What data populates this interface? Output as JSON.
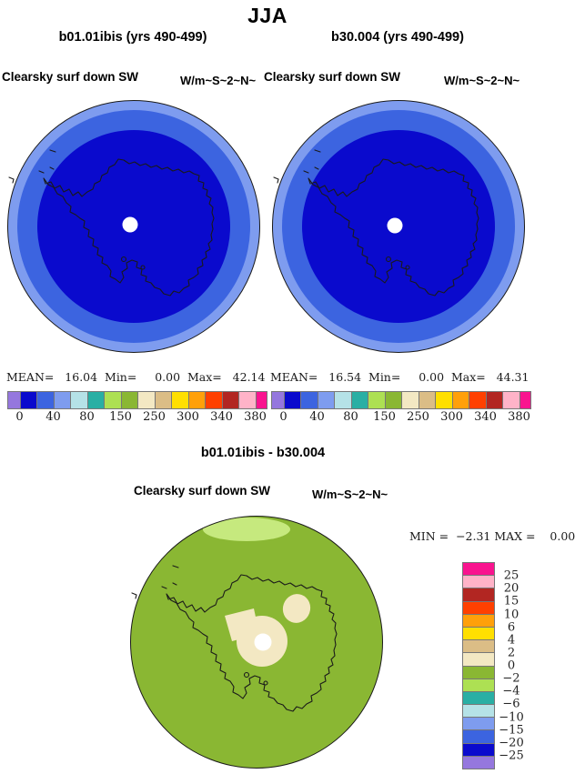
{
  "figure_title": "JJA",
  "panels": {
    "left": {
      "title": "b01.01ibis (yrs 490-499)",
      "field": "Clearsky surf down SW",
      "units": "W/m~S~2~N~",
      "stats_line": "MEAN=   16.04  Min=     0.00  Max=   42.14"
    },
    "right": {
      "title": "b30.004 (yrs 490-499)",
      "field": "Clearsky surf down SW",
      "units": "W/m~S~2~N~",
      "stats_line": "MEAN=   16.54  Min=     0.00  Max=   44.31"
    },
    "diff": {
      "title": "b01.01ibis - b30.004",
      "field": "Clearsky surf down SW",
      "units": "W/m~S~2~N~",
      "stats_line": "MIN =  −2.31 MAX =    0.00"
    }
  },
  "colorbar": {
    "palette": [
      "#9577de",
      "#0a0acd",
      "#3c64e0",
      "#7e9cef",
      "#b5e2e7",
      "#29afa4",
      "#ade053",
      "#8ab733",
      "#f3e8c3",
      "#dbbd86",
      "#ffdf00",
      "#ffa00a",
      "#ff4000",
      "#b22622",
      "#ffb3c8",
      "#f9148f"
    ],
    "h_tick_labels": [
      "0",
      "40",
      "80",
      "150",
      "250",
      "300",
      "340",
      "380"
    ],
    "v_tick_labels": [
      "25",
      "20",
      "15",
      "10",
      "6",
      "4",
      "2",
      "0",
      "−2",
      "−4",
      "−6",
      "−10",
      "−15",
      "−20",
      "−25"
    ]
  },
  "colors": {
    "map_dark_blue": "#0a0acd",
    "map_royal_blue": "#3c64e0",
    "map_light_blue": "#7e9cef",
    "diff_green": "#8ab733",
    "diff_light_patch": "#c6e97e",
    "diff_cream": "#f3e8c3",
    "outline": "#1a1a1a",
    "pole_dot": "#ffffff"
  },
  "chart_data": [
    {
      "type": "heatmap",
      "panel": "left",
      "season": "JJA",
      "title": "b01.01ibis (yrs 490-499)",
      "variable": "Clearsky surf down SW",
      "units_label": "W/m~S~2~N~",
      "projection": "south-polar",
      "mean": 16.04,
      "min": 0.0,
      "max": 42.14,
      "colorbar_ticks": [
        0,
        40,
        80,
        150,
        250,
        300,
        340,
        380
      ],
      "legend_position": "below"
    },
    {
      "type": "heatmap",
      "panel": "right",
      "season": "JJA",
      "title": "b30.004 (yrs 490-499)",
      "variable": "Clearsky surf down SW",
      "units_label": "W/m~S~2~N~",
      "projection": "south-polar",
      "mean": 16.54,
      "min": 0.0,
      "max": 44.31,
      "colorbar_ticks": [
        0,
        40,
        80,
        150,
        250,
        300,
        340,
        380
      ],
      "legend_position": "below"
    },
    {
      "type": "heatmap",
      "panel": "difference",
      "title": "b01.01ibis - b30.004",
      "variable": "Clearsky surf down SW",
      "units_label": "W/m~S~2~N~",
      "projection": "south-polar",
      "min": -2.31,
      "max": 0.0,
      "colorbar_ticks": [
        25,
        20,
        15,
        10,
        6,
        4,
        2,
        0,
        -2,
        -4,
        -6,
        -10,
        -15,
        -20,
        -25
      ],
      "legend_position": "right"
    }
  ]
}
